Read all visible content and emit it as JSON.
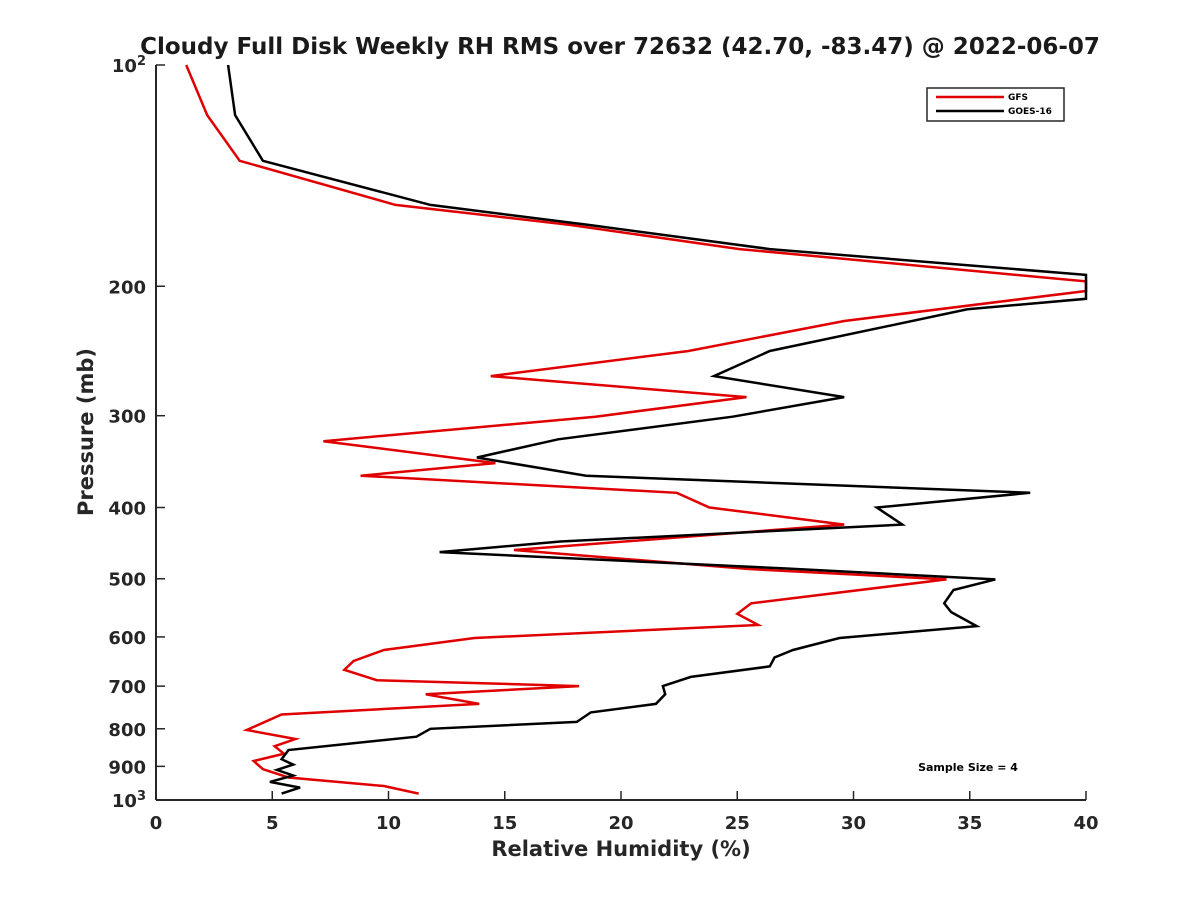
{
  "chart_data": {
    "type": "line",
    "title": "Cloudy Full Disk Weekly RH RMS over 72632 (42.70, -83.47) @ 2022-06-07",
    "xlabel": "Relative Humidity (%)",
    "ylabel": "Pressure (mb)",
    "xlim": [
      0,
      40
    ],
    "ylim": [
      100,
      1000
    ],
    "y_scale": "log",
    "y_reversed": true,
    "x_ticks": [
      0,
      5,
      10,
      15,
      20,
      25,
      30,
      35,
      40
    ],
    "y_ticks": [
      {
        "value": 100,
        "base": "10",
        "exp": "2"
      },
      {
        "value": 200,
        "label": "200"
      },
      {
        "value": 300,
        "label": "300"
      },
      {
        "value": 400,
        "label": "400"
      },
      {
        "value": 500,
        "label": "500"
      },
      {
        "value": 600,
        "label": "600"
      },
      {
        "value": 700,
        "label": "700"
      },
      {
        "value": 800,
        "label": "800"
      },
      {
        "value": 900,
        "label": "900"
      },
      {
        "value": 1000,
        "base": "10",
        "exp": "3"
      }
    ],
    "grid": false,
    "legend_position": "top-right",
    "sample_size_label": "Sample Size = 4",
    "series": [
      {
        "name": "GFS",
        "color": "#e00000",
        "points": [
          [
            1.3,
            100
          ],
          [
            2.2,
            117
          ],
          [
            3.6,
            135
          ],
          [
            10.3,
            155
          ],
          [
            17.8,
            165
          ],
          [
            25.1,
            178
          ],
          [
            40.0,
            197
          ],
          [
            40.0,
            203
          ],
          [
            29.6,
            223
          ],
          [
            22.9,
            245
          ],
          [
            14.4,
            265
          ],
          [
            25.4,
            283
          ],
          [
            18.9,
            301
          ],
          [
            7.2,
            325
          ],
          [
            14.6,
            348
          ],
          [
            8.8,
            362
          ],
          [
            22.4,
            382
          ],
          [
            23.8,
            400
          ],
          [
            29.6,
            422
          ],
          [
            15.4,
            457
          ],
          [
            25.5,
            485
          ],
          [
            34.0,
            501
          ],
          [
            25.6,
            540
          ],
          [
            25.0,
            558
          ],
          [
            25.9,
            578
          ],
          [
            13.7,
            602
          ],
          [
            9.8,
            625
          ],
          [
            8.5,
            647
          ],
          [
            8.1,
            665
          ],
          [
            9.5,
            687
          ],
          [
            18.2,
            700
          ],
          [
            11.6,
            718
          ],
          [
            13.9,
            740
          ],
          [
            5.4,
            765
          ],
          [
            3.9,
            803
          ],
          [
            6.0,
            826
          ],
          [
            5.1,
            845
          ],
          [
            5.5,
            865
          ],
          [
            4.2,
            885
          ],
          [
            4.6,
            908
          ],
          [
            5.7,
            932
          ],
          [
            9.8,
            957
          ],
          [
            11.3,
            980
          ]
        ]
      },
      {
        "name": "GOES-16",
        "color": "#000000",
        "points": [
          [
            3.1,
            100
          ],
          [
            3.4,
            117
          ],
          [
            4.6,
            135
          ],
          [
            11.8,
            155
          ],
          [
            18.6,
            165
          ],
          [
            26.4,
            178
          ],
          [
            40.0,
            193
          ],
          [
            40.0,
            203
          ],
          [
            40.0,
            208
          ],
          [
            34.9,
            215
          ],
          [
            26.4,
            245
          ],
          [
            24.0,
            265
          ],
          [
            29.6,
            283
          ],
          [
            24.8,
            301
          ],
          [
            17.3,
            323
          ],
          [
            13.8,
            342
          ],
          [
            18.5,
            362
          ],
          [
            37.6,
            382
          ],
          [
            31.0,
            400
          ],
          [
            32.1,
            422
          ],
          [
            17.4,
            445
          ],
          [
            12.2,
            460
          ],
          [
            27.0,
            484
          ],
          [
            36.1,
            501
          ],
          [
            34.3,
            518
          ],
          [
            33.9,
            540
          ],
          [
            34.2,
            555
          ],
          [
            35.3,
            580
          ],
          [
            29.4,
            602
          ],
          [
            27.4,
            625
          ],
          [
            26.6,
            640
          ],
          [
            26.4,
            658
          ],
          [
            23.0,
            680
          ],
          [
            21.8,
            700
          ],
          [
            21.9,
            718
          ],
          [
            21.5,
            740
          ],
          [
            18.7,
            760
          ],
          [
            18.1,
            783
          ],
          [
            11.8,
            800
          ],
          [
            11.2,
            820
          ],
          [
            5.7,
            855
          ],
          [
            5.4,
            880
          ],
          [
            5.9,
            895
          ],
          [
            5.2,
            910
          ],
          [
            5.9,
            926
          ],
          [
            4.9,
            945
          ],
          [
            6.2,
            962
          ],
          [
            5.4,
            980
          ]
        ]
      }
    ]
  }
}
